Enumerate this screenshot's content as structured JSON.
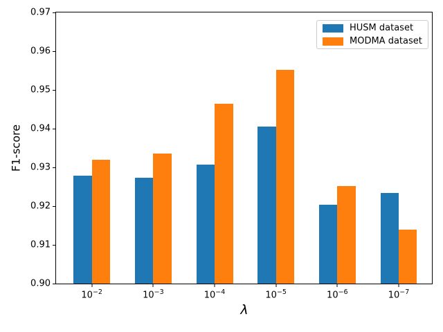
{
  "figure": {
    "background": "#ffffff"
  },
  "chart_data": {
    "type": "bar",
    "title": "",
    "xlabel": "λ",
    "ylabel": "F1-score",
    "categories": [
      "10^−2",
      "10^−3",
      "10^−4",
      "10^−5",
      "10^−6",
      "10^−7"
    ],
    "series": [
      {
        "name": "HUSM dataset",
        "color": "#1f77b4",
        "values": [
          0.9278,
          0.9274,
          0.9308,
          0.9406,
          0.9203,
          0.9234
        ]
      },
      {
        "name": "MODMA dataset",
        "color": "#ff7f0e",
        "values": [
          0.932,
          0.9336,
          0.9464,
          0.9552,
          0.9252,
          0.914
        ]
      }
    ],
    "ylim": [
      0.9,
      0.97
    ],
    "yticks": [
      "0.90",
      "0.91",
      "0.92",
      "0.93",
      "0.94",
      "0.95",
      "0.96",
      "0.97"
    ],
    "grid": false,
    "legend_position": "upper right",
    "legend_border_color": "#cccccc",
    "bar_width_data_units": 0.3
  }
}
